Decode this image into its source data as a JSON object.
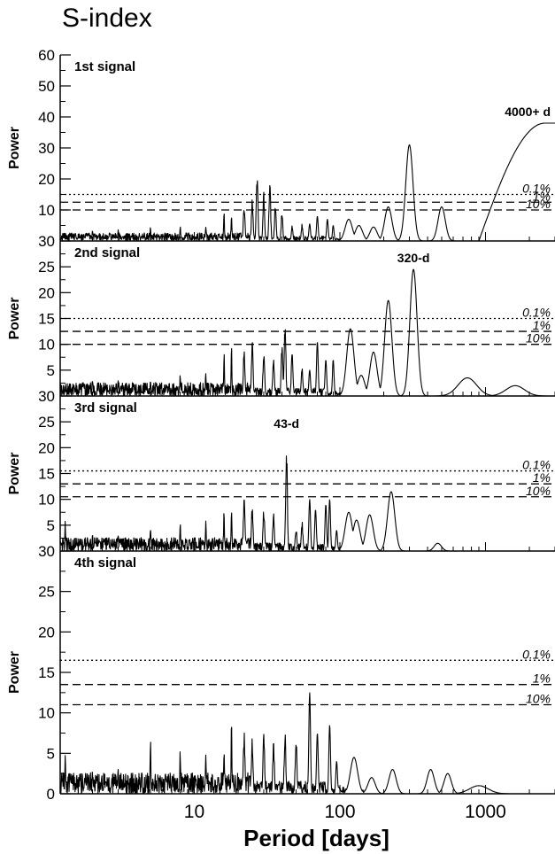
{
  "page": {
    "title": "S-index"
  },
  "chart_data": {
    "type": "line",
    "title": "S-index",
    "xlabel": "Period [days]",
    "x_scale": "log",
    "xlim": [
      1.2,
      3000
    ],
    "x_ticks": [
      10,
      100,
      1000
    ],
    "x_tick_labels": [
      "10",
      "100",
      "1000"
    ],
    "panels": [
      {
        "label": "1st signal",
        "ylabel": "Power",
        "ylim": [
          0,
          60
        ],
        "y_ticks": [
          10,
          20,
          30,
          40,
          50,
          60
        ],
        "y_tick_labels": [
          "10",
          "20",
          "30",
          "40",
          "50",
          "60"
        ],
        "thresholds": [
          {
            "label": "0.1%",
            "value": 15,
            "style": "dotted"
          },
          {
            "label": "1%",
            "value": 12.5,
            "style": "dashed"
          },
          {
            "label": "10%",
            "value": 10,
            "style": "dashed"
          }
        ],
        "peak_label": {
          "text": "4000+ d",
          "period": 2500,
          "power": 38
        },
        "peaks": [
          [
            2,
            3.5
          ],
          [
            3,
            4
          ],
          [
            5,
            4.5
          ],
          [
            8,
            5
          ],
          [
            12,
            5.5
          ],
          [
            16,
            10
          ],
          [
            18,
            11
          ],
          [
            22,
            12
          ],
          [
            25,
            14
          ],
          [
            27,
            23
          ],
          [
            30,
            16
          ],
          [
            33,
            20
          ],
          [
            36,
            12
          ],
          [
            40,
            10
          ],
          [
            47,
            5
          ],
          [
            55,
            6
          ],
          [
            62,
            5.5
          ],
          [
            70,
            8
          ],
          [
            82,
            7
          ],
          [
            90,
            5
          ],
          [
            115,
            7
          ],
          [
            135,
            5
          ],
          [
            170,
            4.5
          ],
          [
            215,
            11
          ],
          [
            300,
            31
          ],
          [
            500,
            11
          ]
        ],
        "trend": {
          "start_period": 900,
          "end_period": 3000,
          "end_power": 38
        }
      },
      {
        "label": "2nd signal",
        "ylabel": "Power",
        "ylim": [
          0,
          30
        ],
        "y_ticks": [
          5,
          10,
          15,
          20,
          25,
          30
        ],
        "y_tick_labels": [
          "5",
          "10",
          "15",
          "20",
          "25",
          "30"
        ],
        "thresholds": [
          {
            "label": "0.1%",
            "value": 15,
            "style": "dotted"
          },
          {
            "label": "1%",
            "value": 12.5,
            "style": "dashed"
          },
          {
            "label": "10%",
            "value": 10,
            "style": "dashed"
          }
        ],
        "peak_label": {
          "text": "320-d",
          "period": 320,
          "power": 24.5
        },
        "peaks": [
          [
            2,
            3
          ],
          [
            3,
            3.5
          ],
          [
            5,
            4
          ],
          [
            8,
            4.5
          ],
          [
            12,
            5
          ],
          [
            16,
            9
          ],
          [
            18,
            10
          ],
          [
            22,
            9
          ],
          [
            25,
            11
          ],
          [
            30,
            9
          ],
          [
            35,
            8
          ],
          [
            40,
            11
          ],
          [
            42,
            16.5
          ],
          [
            47,
            9
          ],
          [
            55,
            6
          ],
          [
            62,
            5
          ],
          [
            70,
            10.5
          ],
          [
            80,
            7
          ],
          [
            90,
            7
          ],
          [
            118,
            13
          ],
          [
            140,
            4
          ],
          [
            170,
            8.5
          ],
          [
            215,
            18.5
          ],
          [
            320,
            24.5
          ],
          [
            750,
            3.5
          ],
          [
            1600,
            2
          ]
        ]
      },
      {
        "label": "3rd signal",
        "ylabel": "Power",
        "ylim": [
          0,
          30
        ],
        "y_ticks": [
          5,
          10,
          15,
          20,
          25,
          30
        ],
        "y_tick_labels": [
          "5",
          "10",
          "15",
          "20",
          "25",
          "30"
        ],
        "thresholds": [
          {
            "label": "0.1%",
            "value": 15.5,
            "style": "dotted"
          },
          {
            "label": "1%",
            "value": 13,
            "style": "dashed"
          },
          {
            "label": "10%",
            "value": 10.5,
            "style": "dashed"
          }
        ],
        "peak_label": {
          "text": "43-d",
          "period": 43,
          "power": 22.5
        },
        "peaks": [
          [
            1.3,
            6
          ],
          [
            2,
            3.5
          ],
          [
            3,
            4
          ],
          [
            5,
            5
          ],
          [
            8,
            6
          ],
          [
            12,
            6.5
          ],
          [
            16,
            8
          ],
          [
            18,
            9
          ],
          [
            22,
            10.5
          ],
          [
            25,
            9
          ],
          [
            30,
            9
          ],
          [
            35,
            8
          ],
          [
            43,
            22.5
          ],
          [
            50,
            5
          ],
          [
            55,
            6
          ],
          [
            62,
            10
          ],
          [
            68,
            8
          ],
          [
            80,
            9
          ],
          [
            85,
            10
          ],
          [
            95,
            4
          ],
          [
            115,
            7.5
          ],
          [
            130,
            6
          ],
          [
            160,
            7
          ],
          [
            225,
            11.5
          ],
          [
            470,
            1.5
          ]
        ]
      },
      {
        "label": "4th signal",
        "ylabel": "Power",
        "ylim": [
          0,
          30
        ],
        "y_ticks": [
          0,
          5,
          10,
          15,
          20,
          25,
          30
        ],
        "y_tick_labels": [
          "0",
          "5",
          "10",
          "15",
          "20",
          "25",
          "30"
        ],
        "thresholds": [
          {
            "label": "0.1%",
            "value": 16.5,
            "style": "dotted"
          },
          {
            "label": "1%",
            "value": 13.5,
            "style": "dashed"
          },
          {
            "label": "10%",
            "value": 11,
            "style": "dashed"
          }
        ],
        "peaks": [
          [
            1.3,
            6
          ],
          [
            2,
            3
          ],
          [
            3,
            4
          ],
          [
            5,
            7.5
          ],
          [
            8,
            6
          ],
          [
            12,
            5.5
          ],
          [
            16,
            6
          ],
          [
            18,
            9
          ],
          [
            22,
            8
          ],
          [
            25,
            7.5
          ],
          [
            30,
            8
          ],
          [
            35,
            7
          ],
          [
            42,
            8
          ],
          [
            50,
            7.5
          ],
          [
            62,
            12.5
          ],
          [
            70,
            7.5
          ],
          [
            85,
            8.5
          ],
          [
            95,
            4
          ],
          [
            125,
            4.5
          ],
          [
            165,
            2
          ],
          [
            230,
            3
          ],
          [
            420,
            3
          ],
          [
            550,
            2.5
          ],
          [
            900,
            1
          ]
        ]
      }
    ]
  }
}
